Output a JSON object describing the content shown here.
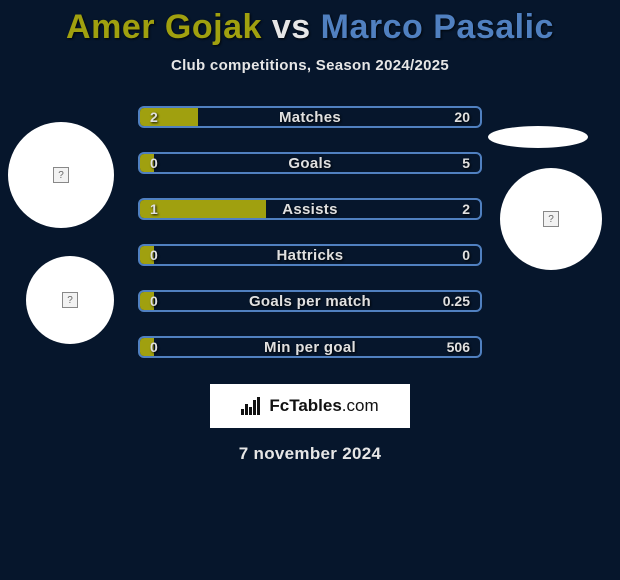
{
  "title": {
    "player1": "Amer Gojak",
    "vs": "vs",
    "player2": "Marco Pasalic"
  },
  "subtitle": "Club competitions, Season 2024/2025",
  "colors": {
    "player1": "#a0a00f",
    "player2": "#5080c0",
    "background": "#06162c",
    "text": "#e6e6e6"
  },
  "stats": [
    {
      "label": "Matches",
      "v1": "2",
      "v2": "20",
      "left_pct": 17
    },
    {
      "label": "Goals",
      "v1": "0",
      "v2": "5",
      "left_pct": 4
    },
    {
      "label": "Assists",
      "v1": "1",
      "v2": "2",
      "left_pct": 37
    },
    {
      "label": "Hattricks",
      "v1": "0",
      "v2": "0",
      "left_pct": 4
    },
    {
      "label": "Goals per match",
      "v1": "0",
      "v2": "0.25",
      "left_pct": 4
    },
    {
      "label": "Min per goal",
      "v1": "0",
      "v2": "506",
      "left_pct": 4
    }
  ],
  "logo": {
    "brand": "FcTables",
    "suffix": ".com"
  },
  "date": "7 november 2024"
}
